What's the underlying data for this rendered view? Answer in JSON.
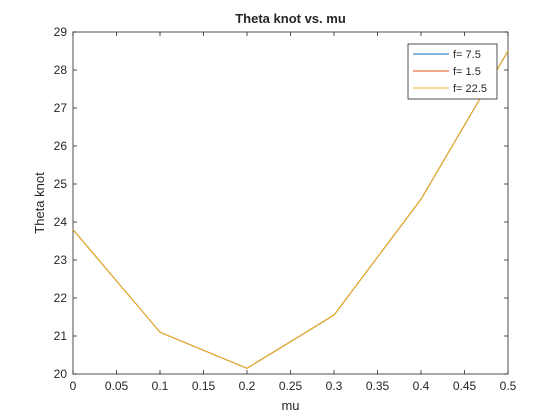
{
  "chart_data": {
    "type": "line",
    "title": "Theta knot vs. mu",
    "xlabel": "mu",
    "ylabel": "Theta knot",
    "xlim": [
      0,
      0.5
    ],
    "ylim": [
      20,
      29
    ],
    "xticks": [
      0,
      0.05,
      0.1,
      0.15,
      0.2,
      0.25,
      0.3,
      0.35,
      0.4,
      0.45,
      0.5
    ],
    "xtick_labels": [
      "0",
      "0.05",
      "0.1",
      "0.15",
      "0.2",
      "0.25",
      "0.3",
      "0.35",
      "0.4",
      "0.45",
      "0.5"
    ],
    "yticks": [
      20,
      21,
      22,
      23,
      24,
      25,
      26,
      27,
      28,
      29
    ],
    "ytick_labels": [
      "20",
      "21",
      "22",
      "23",
      "24",
      "25",
      "26",
      "27",
      "28",
      "29"
    ],
    "grid": false,
    "legend_position": "top-right",
    "x": [
      0,
      0.1,
      0.2,
      0.3,
      0.4,
      0.5
    ],
    "series": [
      {
        "name": "f= 7.5",
        "color": "#0072BD",
        "values": [
          23.8,
          21.1,
          20.15,
          21.55,
          24.6,
          28.5
        ]
      },
      {
        "name": "f= 1.5",
        "color": "#D95319",
        "values": [
          23.8,
          21.1,
          20.15,
          21.55,
          24.6,
          28.5
        ]
      },
      {
        "name": "f= 22.5",
        "color": "#EDB120",
        "values": [
          23.8,
          21.1,
          20.15,
          21.55,
          24.6,
          28.5
        ]
      }
    ]
  }
}
